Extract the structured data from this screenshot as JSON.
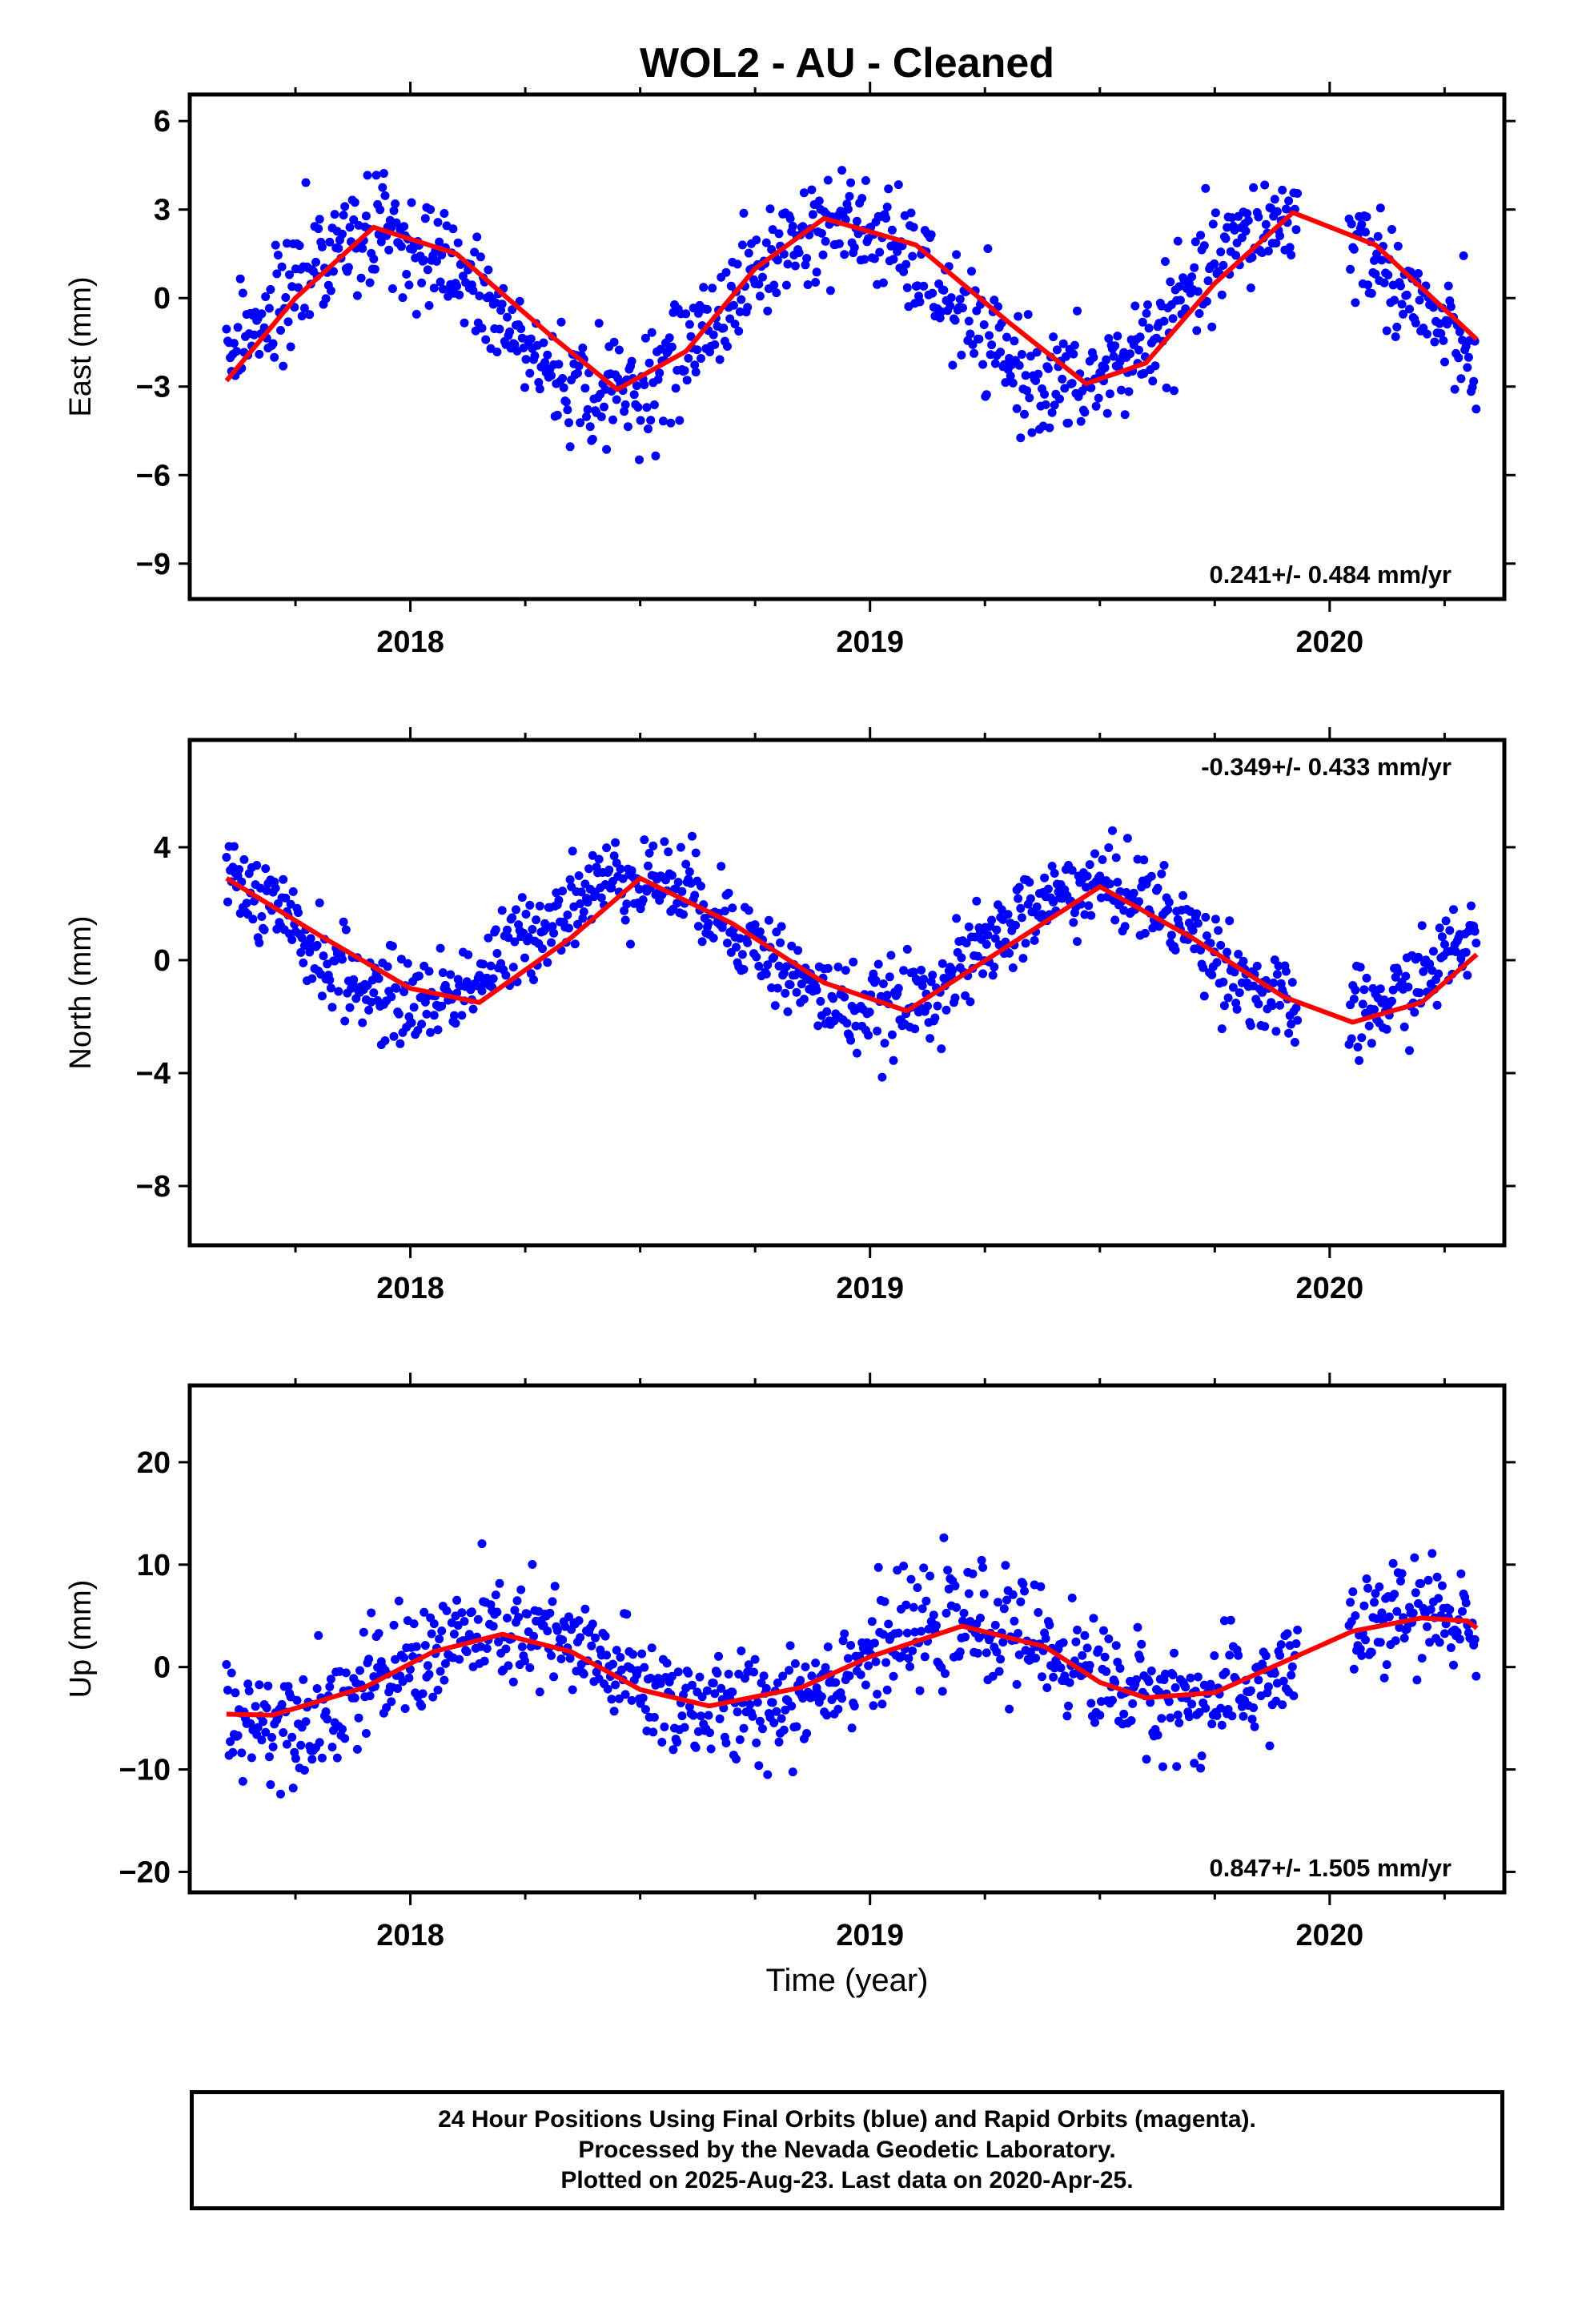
{
  "title": "WOL2  - AU - Cleaned",
  "colors": {
    "points": "#0000ff",
    "fit": "#ff0000",
    "frame": "#000000"
  },
  "xlabel": "Time (year)",
  "footer": {
    "line1": "24 Hour Positions Using Final Orbits (blue) and Rapid Orbits (magenta).",
    "line2": "Processed by the Nevada Geodetic Laboratory.",
    "line3": "Plotted on 2025-Aug-23. Last data on 2020-Apr-25."
  },
  "chart_data": [
    {
      "type": "scatter",
      "ylabel": "East (mm)",
      "rate_text": "0.241+/- 0.484 mm/yr",
      "rate_position": "bottom-right",
      "xlim": [
        2017.52,
        2020.38
      ],
      "ylim": [
        -10.2,
        6.9
      ],
      "xticks": [
        2018,
        2019,
        2020
      ],
      "xtick_labels": [
        "2018",
        "2019",
        "2020"
      ],
      "yticks": [
        -9,
        -6,
        -3,
        0,
        3,
        6
      ],
      "ytick_labels": [
        "−9",
        "−6",
        "−3",
        "0",
        "3",
        "6"
      ],
      "series": [
        {
          "kind": "points",
          "x_range": [
            2017.6,
            2020.32
          ],
          "gap": [
            2019.93,
            2020.04
          ],
          "trend": 0.241,
          "offset": -0.3,
          "amp_annual": 2.8,
          "phase_peak": 2017.93,
          "scatter_sd": 1.5
        },
        {
          "kind": "fit-line",
          "points": [
            [
              2017.6,
              -2.8
            ],
            [
              2017.75,
              0.0
            ],
            [
              2017.92,
              2.4
            ],
            [
              2018.1,
              1.5
            ],
            [
              2018.3,
              -1.2
            ],
            [
              2018.45,
              -3.1
            ],
            [
              2018.6,
              -1.8
            ],
            [
              2018.75,
              1.0
            ],
            [
              2018.9,
              2.7
            ],
            [
              2019.1,
              1.8
            ],
            [
              2019.3,
              -0.8
            ],
            [
              2019.47,
              -2.9
            ],
            [
              2019.6,
              -2.2
            ],
            [
              2019.75,
              0.5
            ],
            [
              2019.92,
              2.9
            ],
            [
              2020.1,
              1.8
            ],
            [
              2020.32,
              -1.4
            ]
          ]
        }
      ]
    },
    {
      "type": "scatter",
      "ylabel": "North (mm)",
      "rate_text": "-0.349+/- 0.433 mm/yr",
      "rate_position": "top-right",
      "xlim": [
        2017.52,
        2020.38
      ],
      "ylim": [
        -10.1,
        7.8
      ],
      "xticks": [
        2018,
        2019,
        2020
      ],
      "xtick_labels": [
        "2018",
        "2019",
        "2020"
      ],
      "yticks": [
        -8,
        -4,
        0,
        4
      ],
      "ytick_labels": [
        "−8",
        "−4",
        "0",
        "4"
      ],
      "series": [
        {
          "kind": "points",
          "x_range": [
            2017.6,
            2020.32
          ],
          "gap": [
            2019.93,
            2020.04
          ],
          "trend": -0.349,
          "offset": 0.5,
          "amp_annual": 2.3,
          "phase_peak": 2018.5,
          "scatter_sd": 1.3
        },
        {
          "kind": "fit-line",
          "points": [
            [
              2017.6,
              2.9
            ],
            [
              2017.8,
              0.9
            ],
            [
              2018.0,
              -1.0
            ],
            [
              2018.15,
              -1.5
            ],
            [
              2018.35,
              0.8
            ],
            [
              2018.5,
              2.9
            ],
            [
              2018.7,
              1.3
            ],
            [
              2018.9,
              -0.8
            ],
            [
              2019.08,
              -1.8
            ],
            [
              2019.3,
              0.5
            ],
            [
              2019.5,
              2.6
            ],
            [
              2019.7,
              0.8
            ],
            [
              2019.9,
              -1.3
            ],
            [
              2020.05,
              -2.2
            ],
            [
              2020.2,
              -1.5
            ],
            [
              2020.32,
              0.2
            ]
          ]
        }
      ]
    },
    {
      "type": "scatter",
      "ylabel": "Up (mm)",
      "rate_text": "0.847+/- 1.505 mm/yr",
      "rate_position": "bottom-right",
      "xlim": [
        2017.52,
        2020.38
      ],
      "ylim": [
        -22,
        27.5
      ],
      "xticks": [
        2018,
        2019,
        2020
      ],
      "xtick_labels": [
        "2018",
        "2019",
        "2020"
      ],
      "yticks": [
        -20,
        -10,
        0,
        10,
        20
      ],
      "ytick_labels": [
        "−20",
        "−10",
        "0",
        "10",
        "20"
      ],
      "series": [
        {
          "kind": "points",
          "x_range": [
            2017.6,
            2020.32
          ],
          "gap": [
            2019.93,
            2020.04
          ],
          "trend": 0.847,
          "offset": 0.0,
          "amp_annual": 4.0,
          "phase_peak": 2018.2,
          "scatter_sd": 4.5
        },
        {
          "kind": "fit-line",
          "points": [
            [
              2017.6,
              -4.6
            ],
            [
              2017.7,
              -4.7
            ],
            [
              2017.9,
              -2.0
            ],
            [
              2018.05,
              1.5
            ],
            [
              2018.2,
              3.2
            ],
            [
              2018.35,
              1.5
            ],
            [
              2018.5,
              -2.2
            ],
            [
              2018.65,
              -3.8
            ],
            [
              2018.85,
              -2.0
            ],
            [
              2019.0,
              1.0
            ],
            [
              2019.2,
              4.0
            ],
            [
              2019.38,
              2.0
            ],
            [
              2019.5,
              -1.5
            ],
            [
              2019.6,
              -3.0
            ],
            [
              2019.75,
              -2.5
            ],
            [
              2019.9,
              0.5
            ],
            [
              2020.05,
              3.5
            ],
            [
              2020.2,
              4.8
            ],
            [
              2020.3,
              4.5
            ],
            [
              2020.32,
              3.8
            ]
          ]
        }
      ]
    }
  ]
}
